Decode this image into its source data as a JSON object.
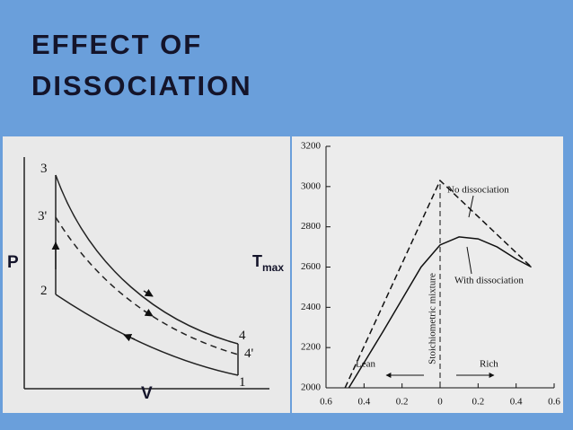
{
  "slide": {
    "title_lines": [
      "EFFECT OF",
      "DISSOCIATION"
    ]
  },
  "pv_diagram": {
    "y_label": "P",
    "x_label": "V",
    "points": {
      "p3": "3",
      "p3p": "3'",
      "p2": "2",
      "p4": "4",
      "p4p": "4'",
      "p1": "1"
    }
  },
  "chart_data": {
    "type": "line",
    "ylabel": {
      "main": "T",
      "sub": "max"
    },
    "xlim": [
      -0.6,
      0.6
    ],
    "ylim": [
      2000,
      3200
    ],
    "xticks": [
      {
        "value": -0.6,
        "label": "0.6"
      },
      {
        "value": -0.4,
        "label": "0.4"
      },
      {
        "value": -0.2,
        "label": "0.2"
      },
      0,
      0.2,
      0.4,
      0.6
    ],
    "yticks": [
      2000,
      2200,
      2400,
      2600,
      2800,
      3000,
      3200
    ],
    "annotations": [
      "No dissociation",
      "With dissociation",
      "Stoichiometric mixture",
      "Lean",
      "Rich"
    ],
    "series": [
      {
        "name": "No dissociation",
        "color": "#111111",
        "dashed": true,
        "x": [
          -0.5,
          0,
          0.48
        ],
        "values": [
          2000,
          3030,
          2600
        ]
      },
      {
        "name": "With dissociation",
        "color": "#111111",
        "dashed": false,
        "x": [
          -0.48,
          -0.3,
          -0.2,
          -0.1,
          0,
          0.1,
          0.2,
          0.3,
          0.4,
          0.48
        ],
        "values": [
          2000,
          2280,
          2440,
          2600,
          2710,
          2750,
          2740,
          2700,
          2640,
          2600
        ]
      }
    ]
  }
}
